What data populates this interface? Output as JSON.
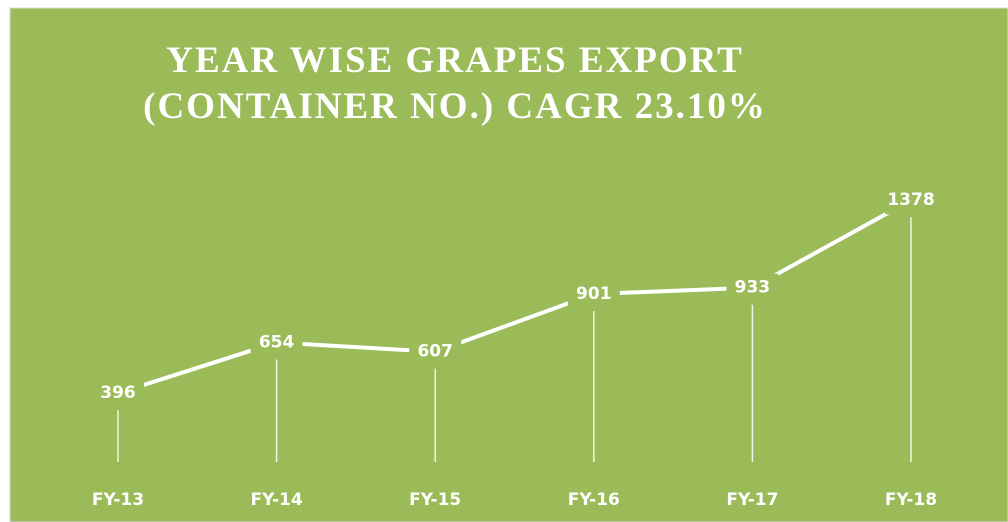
{
  "chart_data": {
    "type": "line",
    "title": [
      "YEAR WISE GRAPES EXPORT",
      "(CONTAINER NO.) CAGR 23.10%"
    ],
    "categories": [
      "FY-13",
      "FY-14",
      "FY-15",
      "FY-16",
      "FY-17",
      "FY-18"
    ],
    "values": [
      396,
      654,
      607,
      901,
      933,
      1378
    ],
    "color": "#ffffff",
    "background": "#9bbb59",
    "drop_lines": true
  }
}
